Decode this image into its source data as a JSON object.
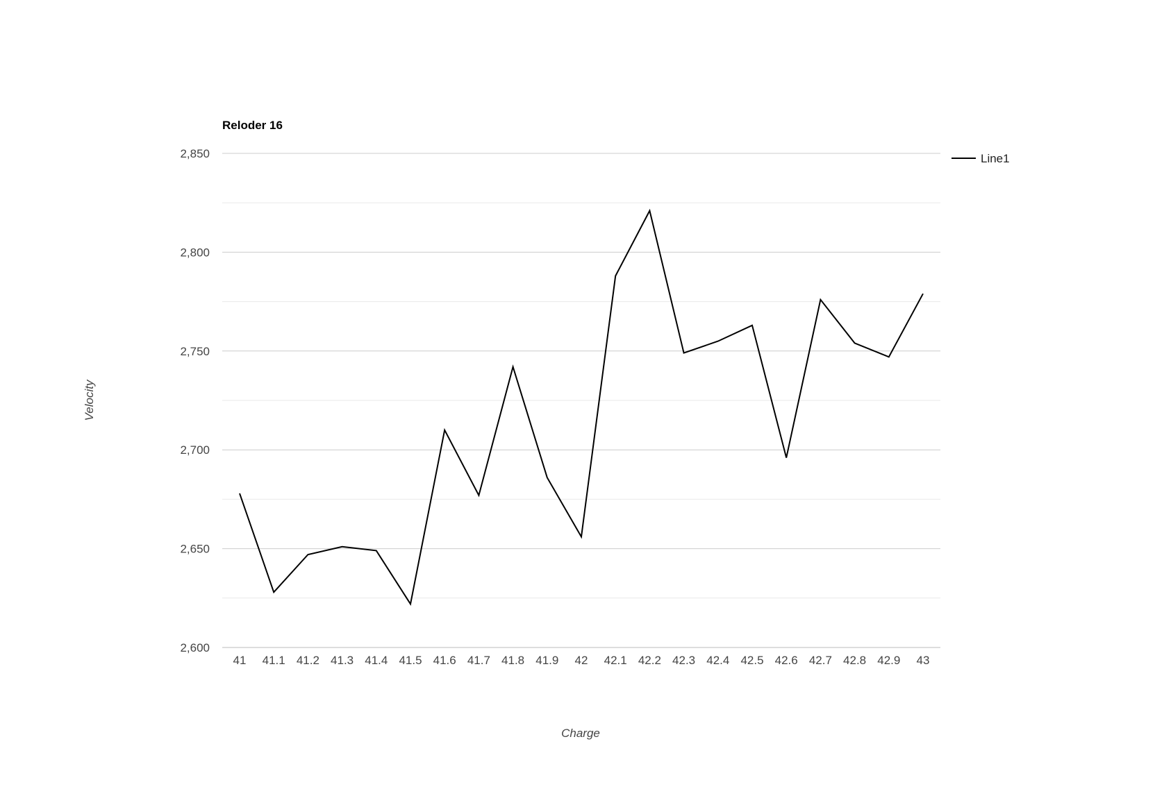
{
  "chart_data": {
    "type": "line",
    "title": "Reloder 16",
    "xlabel": "Charge",
    "ylabel": "Velocity",
    "x": [
      "41",
      "41.1",
      "41.2",
      "41.3",
      "41.4",
      "41.5",
      "41.6",
      "41.7",
      "41.8",
      "41.9",
      "42",
      "42.1",
      "42.2",
      "42.3",
      "42.4",
      "42.5",
      "42.6",
      "42.7",
      "42.8",
      "42.9",
      "43"
    ],
    "series": [
      {
        "name": "Line1",
        "color": "#000000",
        "values": [
          2678,
          2628,
          2647,
          2651,
          2649,
          2622,
          2710,
          2677,
          2742,
          2686,
          2656,
          2788,
          2821,
          2749,
          2755,
          2763,
          2696,
          2776,
          2754,
          2747,
          2779
        ]
      }
    ],
    "ylim": [
      2600,
      2850
    ],
    "yticks": [
      "2,600",
      "2,650",
      "2,700",
      "2,750",
      "2,800",
      "2,850"
    ],
    "grid": true,
    "legend_position": "right"
  }
}
